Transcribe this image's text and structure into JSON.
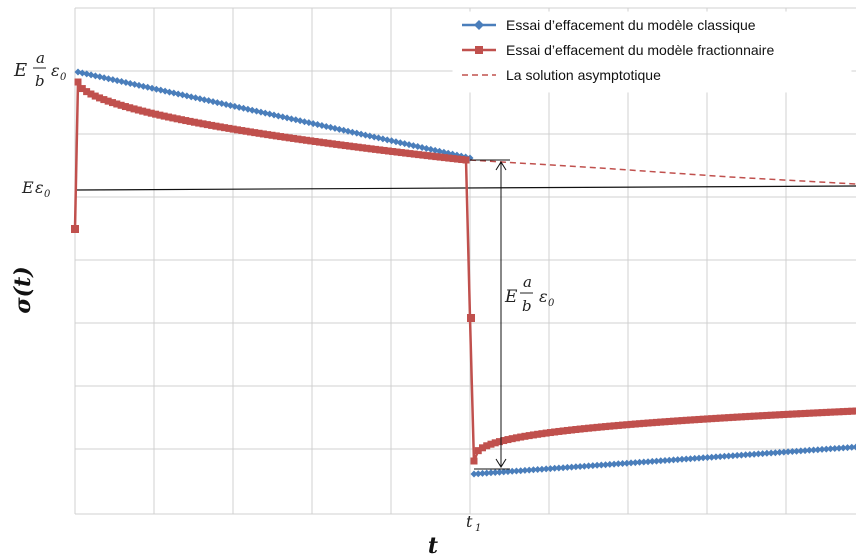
{
  "chart_data": {
    "type": "line",
    "xlabel": "t",
    "ylabel": "σ(t)",
    "grid": true,
    "legend_position": "top-right",
    "x_tick_labels": [
      {
        "base": "t",
        "sub": "1"
      }
    ],
    "y_tick_labels": [
      {
        "kind": "fraction",
        "prefix": "E",
        "num": "a",
        "den": "b",
        "suffix_base": "ε",
        "suffix_sub": "0"
      },
      {
        "kind": "simple",
        "prefix": "E",
        "base": "ε",
        "sub": "0"
      }
    ],
    "annotations": [
      {
        "kind": "fraction",
        "prefix": "E",
        "num": "a",
        "den": "b",
        "suffix_base": "ε",
        "suffix_sub": "0"
      }
    ],
    "series": [
      {
        "name": "Essai d’effacement du modèle classique",
        "color": "#4a7ebb",
        "marker": "diamond",
        "note": "dense markers forming a thick band"
      },
      {
        "name": "Essai d’effacement du modèle fractionnaire",
        "color": "#c0504d",
        "marker": "square",
        "note": "dense markers forming a thick band"
      },
      {
        "name": "La solution asymptotique",
        "color": "#c0504d",
        "dash": true
      }
    ]
  }
}
